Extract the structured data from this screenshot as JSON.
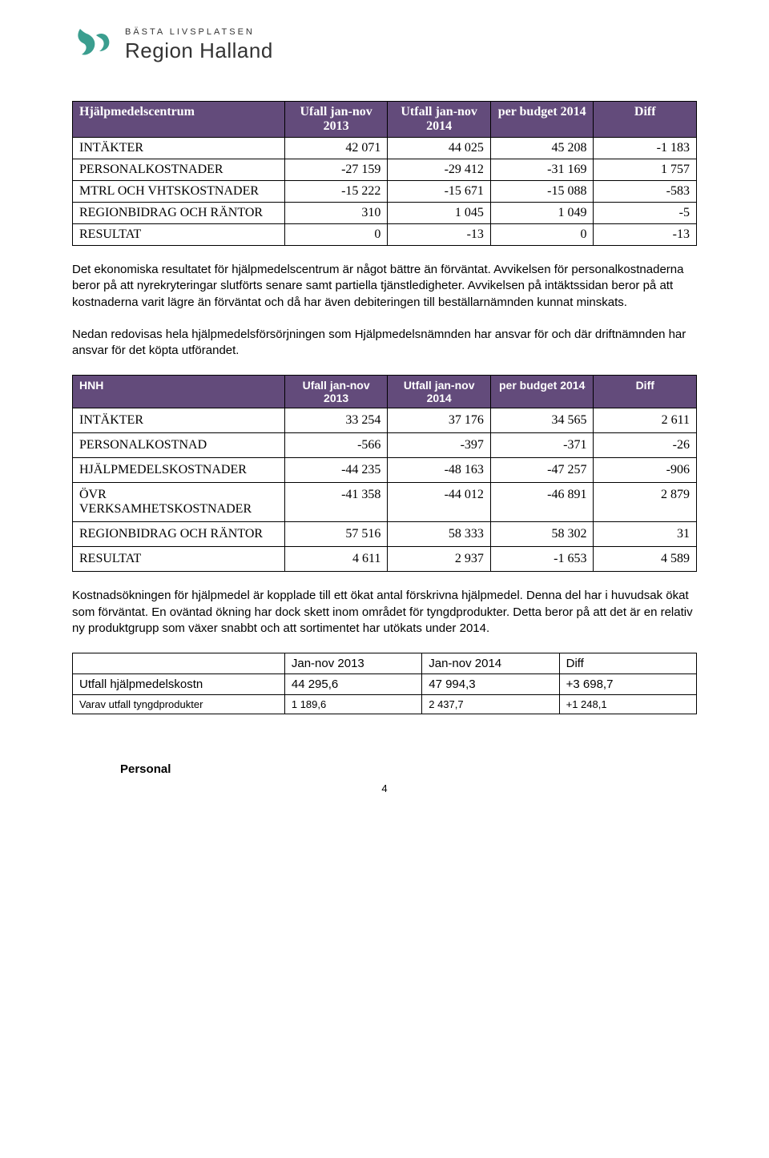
{
  "logo": {
    "tagline": "BÄSTA LIVSPLATSEN",
    "brand": "Region Halland",
    "accent_color": "#3b9e8f",
    "text_color": "#333333"
  },
  "table1": {
    "header_bg": "#634b7b",
    "columns": [
      "Hjälpmedelscentrum",
      "Ufall jan-nov 2013",
      "Utfall jan-nov 2014",
      "per budget 2014",
      "Diff"
    ],
    "rows": [
      [
        "INTÄKTER",
        "42 071",
        "44 025",
        "45 208",
        "-1 183"
      ],
      [
        "PERSONALKOSTNADER",
        "-27 159",
        "-29 412",
        "-31 169",
        "1 757"
      ],
      [
        "MTRL OCH VHTSKOSTNADER",
        "-15 222",
        "-15 671",
        "-15 088",
        "-583"
      ],
      [
        "REGIONBIDRAG OCH RÄNTOR",
        "310",
        "1 045",
        "1 049",
        "-5"
      ],
      [
        "RESULTAT",
        "0",
        "-13",
        "0",
        "-13"
      ]
    ]
  },
  "para1": "Det ekonomiska resultatet för hjälpmedelscentrum är något bättre än förväntat. Avvikelsen för personalkostnaderna beror på att nyrekryteringar slutförts senare samt partiella tjänstledigheter. Avvikelsen på intäktssidan beror på att kostnaderna varit lägre än förväntat och då har även debiteringen till beställarnämnden kunnat minskats.",
  "para2": "Nedan redovisas hela hjälpmedelsförsörjningen som Hjälpmedelsnämnden har ansvar för och där driftnämnden har ansvar för det köpta utförandet.",
  "table2": {
    "header_bg": "#634b7b",
    "columns": [
      "HNH",
      "Ufall jan-nov 2013",
      "Utfall jan-nov 2014",
      "per budget 2014",
      "Diff"
    ],
    "rows": [
      [
        "INTÄKTER",
        "33 254",
        "37 176",
        "34 565",
        "2 611"
      ],
      [
        "PERSONALKOSTNAD",
        "-566",
        "-397",
        "-371",
        "-26"
      ],
      [
        "HJÄLPMEDELSKOSTNADER",
        "-44 235",
        "-48 163",
        "-47 257",
        "-906"
      ],
      [
        "ÖVR VERKSAMHETSKOSTNADER",
        "-41 358",
        "-44 012",
        "-46 891",
        "2 879"
      ],
      [
        "REGIONBIDRAG OCH RÄNTOR",
        "57 516",
        "58 333",
        "58 302",
        "31"
      ],
      [
        "RESULTAT",
        "4 611",
        "2 937",
        "-1 653",
        "4 589"
      ]
    ]
  },
  "para3": "Kostnadsökningen för hjälpmedel är kopplade till ett ökat antal förskrivna hjälpmedel. Denna del har i huvudsak ökat som förväntat. En oväntad ökning har dock skett inom området för tyngdprodukter. Detta beror på att det är en relativ ny produktgrupp som växer snabbt och att sortimentet har utökats under 2014.",
  "table3": {
    "columns": [
      "",
      "Jan-nov 2013",
      "Jan-nov 2014",
      "Diff"
    ],
    "rows": [
      [
        "Utfall hjälpmedelskostn",
        "44 295,6",
        "47 994,3",
        "+3 698,7"
      ],
      [
        "Varav utfall tyngdprodukter",
        "1 189,6",
        "2 437,7",
        "+1 248,1"
      ]
    ]
  },
  "section_heading": "Personal",
  "page_number": "4"
}
